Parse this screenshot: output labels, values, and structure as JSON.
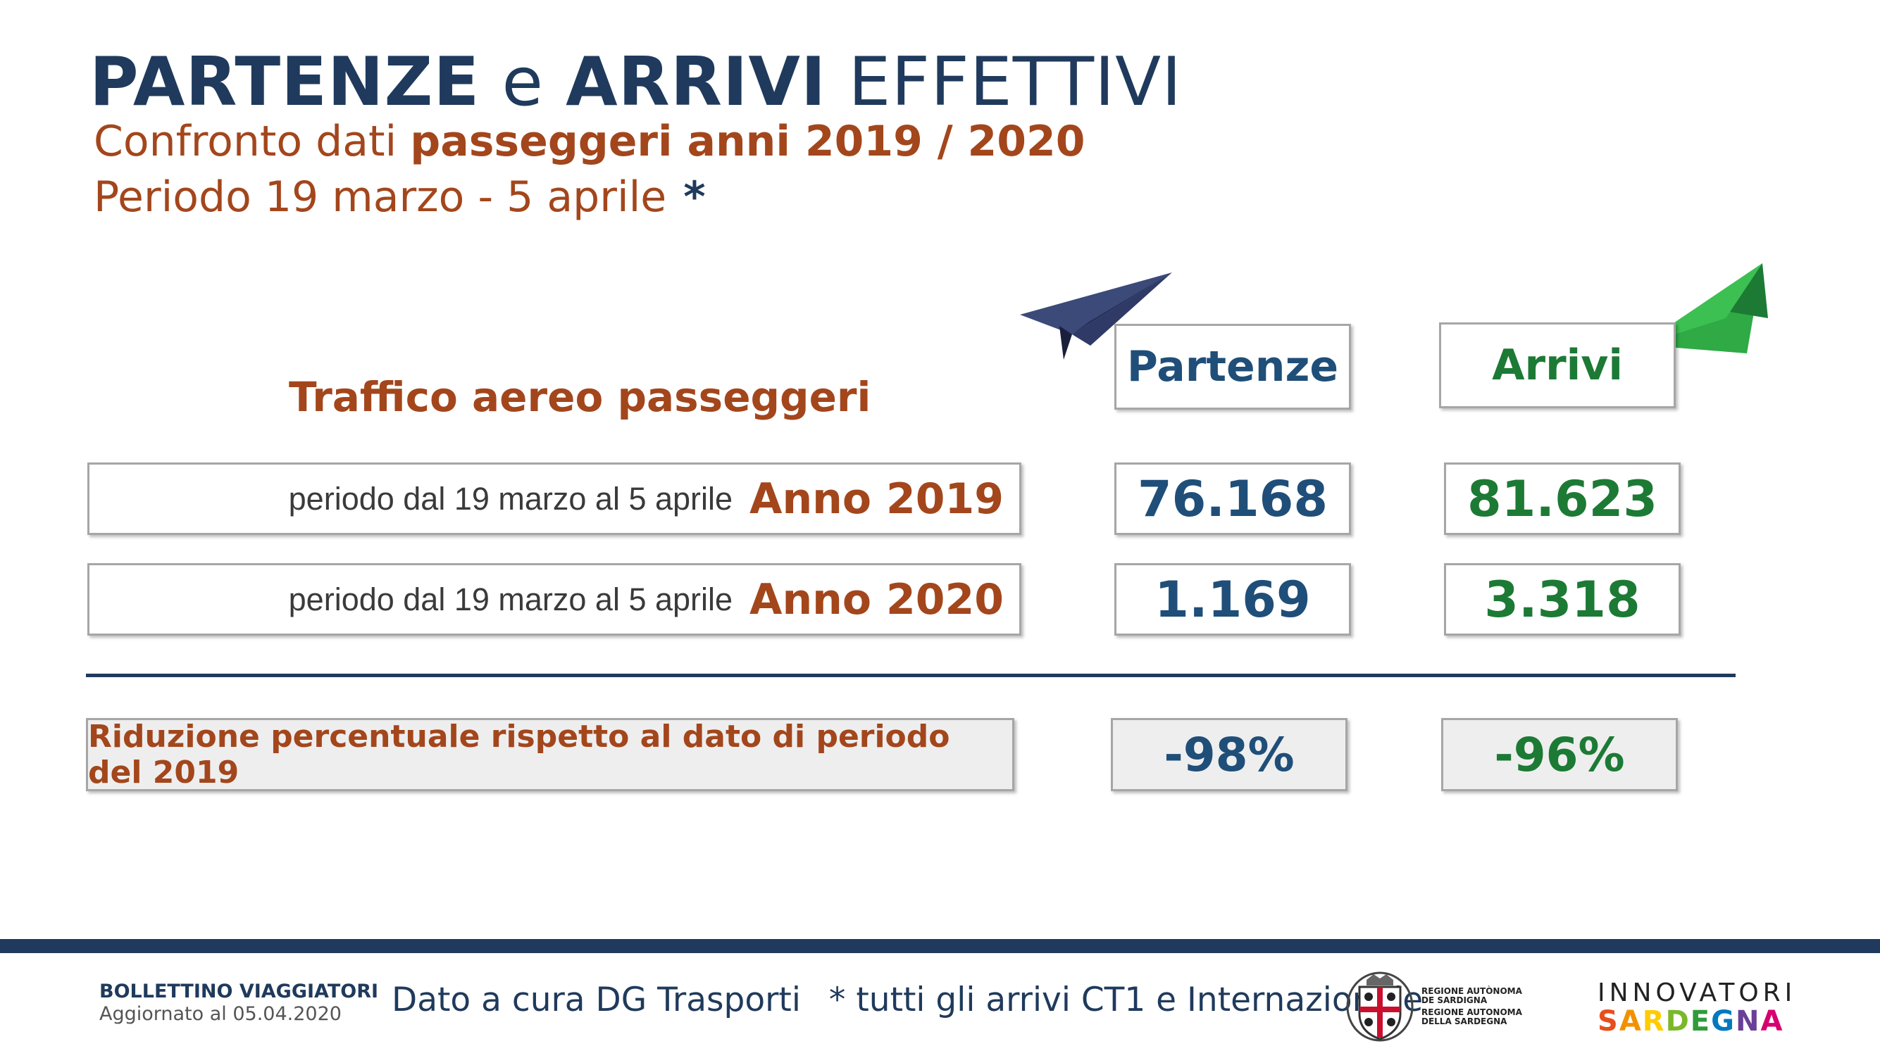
{
  "title": {
    "part1": "PARTENZE",
    "part2": "e",
    "part3": "ARRIVI",
    "part4": "EFFETTIVI"
  },
  "subtitle": {
    "prefix": "Confronto dati",
    "bold": "passeggeri anni 2019 / 2020"
  },
  "period": {
    "text": "Periodo 19 marzo - 5 aprile",
    "marker": "*"
  },
  "section_title": "Traffico aereo passeggeri",
  "columns": {
    "departures": "Partenze",
    "arrivals": "Arrivi"
  },
  "rows": [
    {
      "label": "periodo dal 19 marzo al 5 aprile",
      "year": "Anno 2019",
      "departures": "76.168",
      "arrivals": "81.623"
    },
    {
      "label": "periodo dal 19 marzo al 5 aprile",
      "year": "Anno 2020",
      "departures": "1.169",
      "arrivals": "3.318"
    }
  ],
  "reduction": {
    "label": "Riduzione percentuale rispetto al dato di periodo del 2019",
    "departures": "-98%",
    "arrivals": "-96%"
  },
  "footer": {
    "bulletin_title": "BOLLETTINO VIAGGIATORI",
    "updated": "Aggiornato al 05.04.2020",
    "source": "Dato a cura DG Trasporti",
    "note": "* tutti gli arrivi CT1 e Internazionale",
    "region_lines": [
      "REGIONE AUTÒNOMA",
      "DE SARDIGNA",
      "REGIONE AUTONOMA",
      "DELLA SARDEGNA"
    ],
    "innovatori": "INNOVATORI",
    "sardegna_letters": [
      "S",
      "A",
      "R",
      "D",
      "E",
      "G",
      "N",
      "A"
    ]
  },
  "colors": {
    "navy": "#1f3a5c",
    "blue": "#1f4e79",
    "rust": "#a3461c",
    "green": "#1c7a35",
    "sardegna": [
      "#e84e1b",
      "#f29100",
      "#ffcc00",
      "#7ab829",
      "#2f9b3a",
      "#0079c1",
      "#6a3f98",
      "#d6006f"
    ]
  },
  "icons": {
    "departures": "paper-plane-navy-icon",
    "arrivals": "paper-plane-green-icon",
    "crest": "sardinia-crest-icon"
  }
}
